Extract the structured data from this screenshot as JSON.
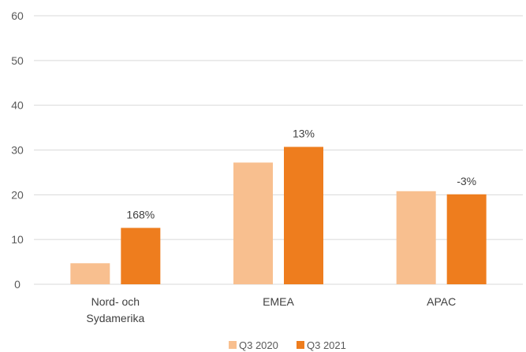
{
  "chart_data": {
    "type": "bar",
    "categories": [
      [
        "Nord- och",
        "Sydamerika"
      ],
      [
        "EMEA"
      ],
      [
        "APAC"
      ]
    ],
    "series": [
      {
        "name": "Q3 2020",
        "color": "#f8bf8f",
        "values": [
          4.7,
          27.2,
          20.8
        ]
      },
      {
        "name": "Q3 2021",
        "color": "#ee7d1e",
        "values": [
          12.6,
          30.7,
          20.1
        ]
      }
    ],
    "data_labels": [
      "168%",
      "13%",
      "-3%"
    ],
    "data_labels_series": "Q3 2021",
    "ylim": [
      0,
      60
    ],
    "yticks": [
      0,
      10,
      20,
      30,
      40,
      50,
      60
    ],
    "grid": true,
    "legend_position": "bottom"
  }
}
